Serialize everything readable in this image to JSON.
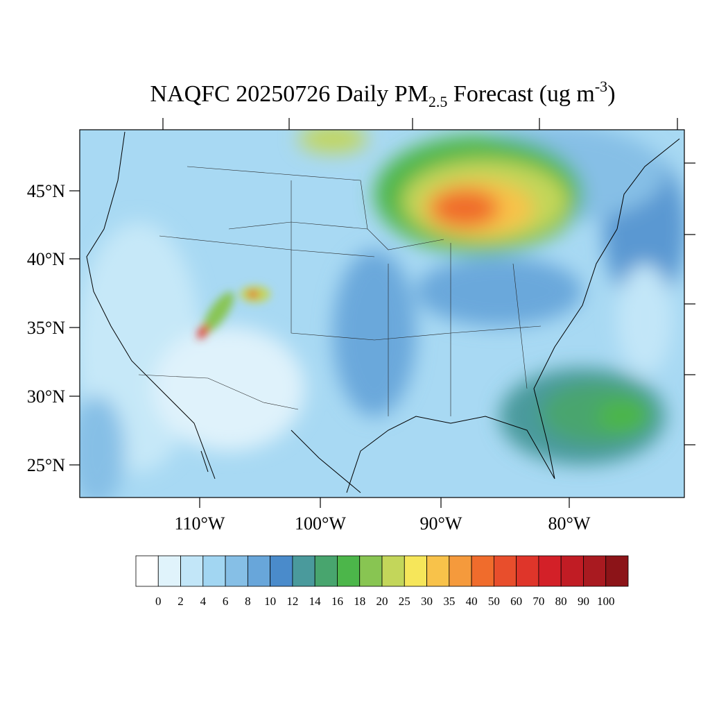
{
  "title": {
    "main": "NAQFC 20250726 Daily PM",
    "sub": "2.5",
    "rest": " Forecast (ug m",
    "sup": "-3",
    "end": ")"
  },
  "lat_labels": [
    "45°N",
    "40°N",
    "35°N",
    "30°N",
    "25°N"
  ],
  "lon_labels": [
    "110°W",
    "100°W",
    "90°W",
    "80°W"
  ],
  "colorbar": {
    "labels": [
      0,
      2,
      4,
      6,
      8,
      10,
      12,
      14,
      16,
      18,
      20,
      25,
      30,
      35,
      40,
      50,
      60,
      70,
      80,
      90,
      100
    ],
    "colors": [
      "#ffffff",
      "#e0f3fb",
      "#c2e6f8",
      "#a2d6f2",
      "#86bfe6",
      "#68a6da",
      "#4a8bcb",
      "#4a9a9c",
      "#48a56e",
      "#4cb64a",
      "#88c552",
      "#c3d65a",
      "#f6e65a",
      "#f8c24a",
      "#f59a3c",
      "#f06c2c",
      "#e84e2c",
      "#df352a",
      "#d32028",
      "#c11c24",
      "#a91a20",
      "#8c1418"
    ]
  }
}
